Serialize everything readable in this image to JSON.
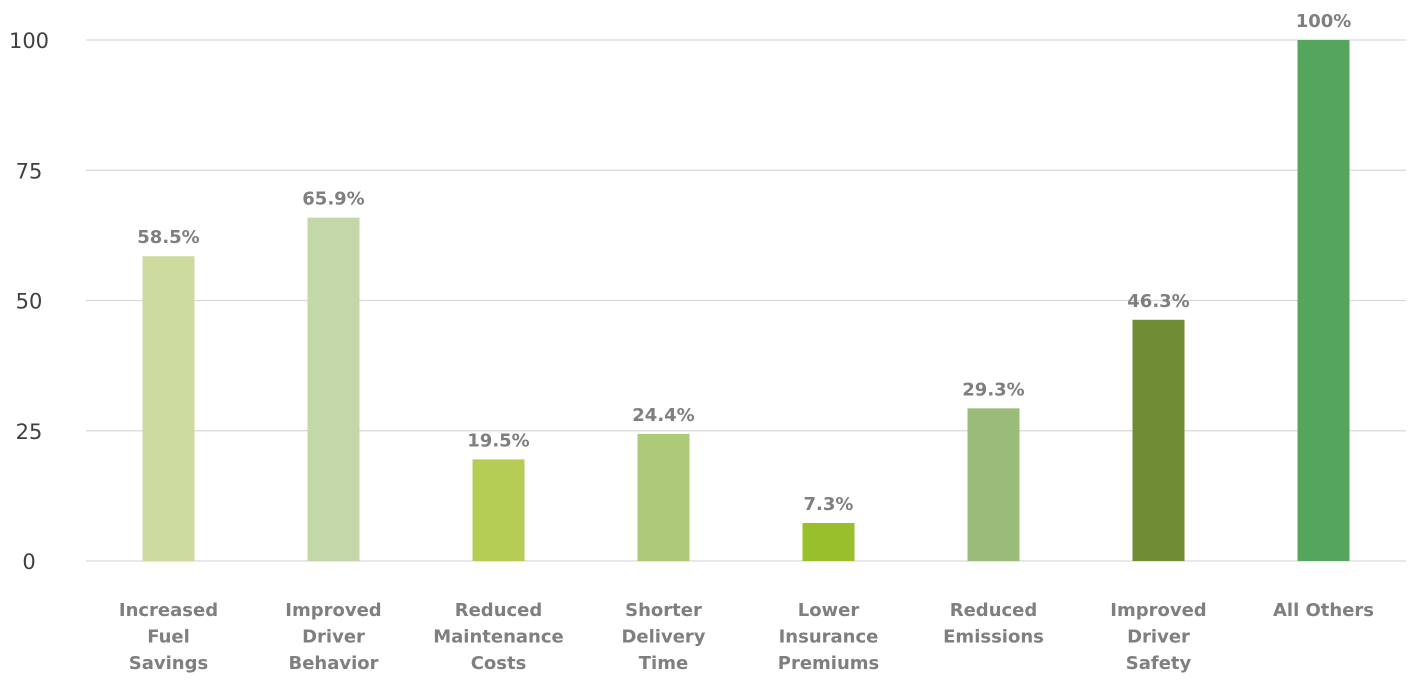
{
  "chart_data": {
    "type": "bar",
    "title": "",
    "xlabel": "",
    "ylabel": "",
    "ylim": [
      0,
      100
    ],
    "yticks": [
      0,
      25,
      50,
      75,
      100
    ],
    "grid": true,
    "legend": "none",
    "categories": [
      "Increased Fuel Savings",
      "Improved Driver Behavior",
      "Reduced Maintenance Costs",
      "Shorter Delivery Time",
      "Lower Insurance Premiums",
      "Reduced Emissions",
      "Improved Driver Safety",
      "All Others"
    ],
    "category_lines": [
      [
        "Increased",
        "Fuel",
        "Savings"
      ],
      [
        "Improved",
        "Driver",
        "Behavior"
      ],
      [
        "Reduced",
        "Maintenance",
        "Costs"
      ],
      [
        "Shorter",
        "Delivery",
        "Time"
      ],
      [
        "Lower",
        "Insurance",
        "Premiums"
      ],
      [
        "Reduced",
        "Emissions"
      ],
      [
        "Improved",
        "Driver",
        "Safety"
      ],
      [
        "All Others"
      ]
    ],
    "values": [
      58.5,
      65.9,
      19.5,
      24.4,
      7.3,
      29.3,
      46.3,
      100
    ],
    "data_labels": [
      "58.5%",
      "65.9%",
      "19.5%",
      "24.4%",
      "7.3%",
      "29.3%",
      "46.3%",
      "100%"
    ],
    "colors": [
      "#cedb9f",
      "#c3d7a8",
      "#b5cc55",
      "#adca7a",
      "#99bf2c",
      "#9bbb78",
      "#6f8d35",
      "#55a55d"
    ]
  }
}
